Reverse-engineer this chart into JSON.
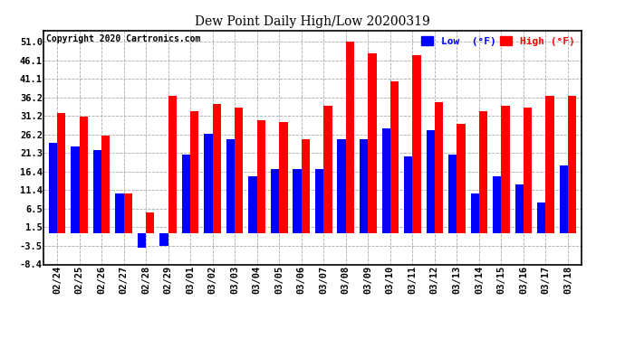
{
  "title": "Dew Point Daily High/Low 20200319",
  "copyright": "Copyright 2020 Cartronics.com",
  "dates": [
    "02/24",
    "02/25",
    "02/26",
    "02/27",
    "02/28",
    "02/29",
    "03/01",
    "03/02",
    "03/03",
    "03/04",
    "03/05",
    "03/06",
    "03/07",
    "03/08",
    "03/09",
    "03/10",
    "03/11",
    "03/12",
    "03/13",
    "03/14",
    "03/15",
    "03/16",
    "03/17",
    "03/18"
  ],
  "high": [
    32.0,
    31.0,
    26.0,
    10.5,
    5.5,
    36.5,
    32.5,
    34.5,
    33.5,
    30.0,
    29.5,
    25.0,
    34.0,
    51.0,
    48.0,
    40.5,
    47.5,
    35.0,
    29.0,
    32.5,
    34.0,
    33.5,
    36.5,
    36.5
  ],
  "low": [
    24.0,
    23.0,
    22.0,
    10.5,
    -4.0,
    -3.5,
    21.0,
    26.5,
    25.0,
    15.0,
    17.0,
    17.0,
    17.0,
    25.0,
    25.0,
    28.0,
    20.5,
    27.5,
    21.0,
    10.5,
    15.0,
    13.0,
    8.0,
    18.0
  ],
  "high_color": "#ff0000",
  "low_color": "#0000ff",
  "background_color": "#ffffff",
  "grid_color": "#aaaaaa",
  "yticks": [
    -8.4,
    -3.5,
    1.5,
    6.5,
    11.4,
    16.4,
    21.3,
    26.2,
    31.2,
    36.2,
    41.1,
    46.1,
    51.0
  ],
  "ylim": [
    -8.4,
    54.0
  ],
  "bar_width": 0.38
}
